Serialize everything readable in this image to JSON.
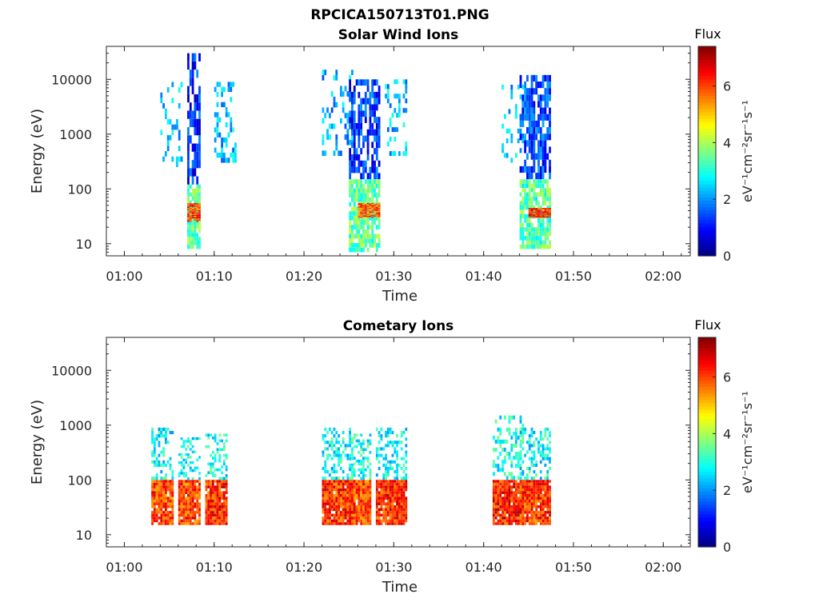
{
  "figure_title": "RPCICA150713T01.PNG",
  "chart_data": [
    {
      "type": "heatmap",
      "title": "Solar Wind Ions",
      "xlabel": "Time",
      "ylabel": "Energy (eV)",
      "y_scale": "log",
      "ylim": [
        6,
        40000
      ],
      "xlim": [
        "00:58",
        "02:03"
      ],
      "x_ticks": [
        "01:00",
        "01:10",
        "01:20",
        "01:30",
        "01:40",
        "01:50",
        "02:00"
      ],
      "y_ticks": [
        "10",
        "100",
        "1000",
        "10000"
      ],
      "colorbar": {
        "label": "Flux",
        "unit": "eV⁻¹cm⁻²sr⁻¹s⁻¹",
        "range": [
          0,
          7.4
        ],
        "ticks": [
          "0",
          "2",
          "4",
          "6"
        ],
        "colormap": "jet"
      },
      "clusters": [
        {
          "t": [
            "01:04",
            "01:06"
          ],
          "e_low": 250,
          "e_high": 9000,
          "f": 2.3,
          "density": 0.25
        },
        {
          "t": [
            "01:07",
            "01:08"
          ],
          "e_low": 120,
          "e_high": 30000,
          "f": 1.2,
          "density": 0.7
        },
        {
          "t": [
            "01:07",
            "01:08"
          ],
          "e_low": 8,
          "e_high": 120,
          "f": 3.5,
          "density": 0.85
        },
        {
          "t": [
            "01:07",
            "01:08"
          ],
          "e_low": 25,
          "e_high": 55,
          "f": 6.0,
          "density": 0.9
        },
        {
          "t": [
            "01:10",
            "01:12"
          ],
          "e_low": 300,
          "e_high": 9000,
          "f": 2.4,
          "density": 0.3
        },
        {
          "t": [
            "01:22",
            "01:25"
          ],
          "e_low": 400,
          "e_high": 15000,
          "f": 2.2,
          "density": 0.25
        },
        {
          "t": [
            "01:25",
            "01:28"
          ],
          "e_low": 150,
          "e_high": 10000,
          "f": 1.3,
          "density": 0.65
        },
        {
          "t": [
            "01:25",
            "01:28"
          ],
          "e_low": 7,
          "e_high": 150,
          "f": 3.5,
          "density": 0.85
        },
        {
          "t": [
            "01:26",
            "01:28"
          ],
          "e_low": 30,
          "e_high": 55,
          "f": 5.8,
          "density": 0.9
        },
        {
          "t": [
            "01:29",
            "01:31"
          ],
          "e_low": 400,
          "e_high": 10000,
          "f": 2.3,
          "density": 0.3
        },
        {
          "t": [
            "01:42",
            "01:44"
          ],
          "e_low": 300,
          "e_high": 8000,
          "f": 2.2,
          "density": 0.25
        },
        {
          "t": [
            "01:44",
            "01:47"
          ],
          "e_low": 150,
          "e_high": 12000,
          "f": 1.4,
          "density": 0.65
        },
        {
          "t": [
            "01:44",
            "01:47"
          ],
          "e_low": 8,
          "e_high": 150,
          "f": 3.4,
          "density": 0.85
        },
        {
          "t": [
            "01:45",
            "01:47"
          ],
          "e_low": 30,
          "e_high": 45,
          "f": 6.2,
          "density": 0.9
        }
      ]
    },
    {
      "type": "heatmap",
      "title": "Cometary Ions",
      "xlabel": "Time",
      "ylabel": "Energy (eV)",
      "y_scale": "log",
      "ylim": [
        6,
        40000
      ],
      "xlim": [
        "00:58",
        "02:03"
      ],
      "x_ticks": [
        "01:00",
        "01:10",
        "01:20",
        "01:30",
        "01:40",
        "01:50",
        "02:00"
      ],
      "y_ticks": [
        "10",
        "100",
        "1000",
        "10000"
      ],
      "colorbar": {
        "label": "Flux",
        "unit": "eV⁻¹cm⁻²sr⁻¹s⁻¹",
        "range": [
          0,
          7.4
        ],
        "ticks": [
          "0",
          "2",
          "4",
          "6"
        ],
        "colormap": "jet"
      },
      "clusters": [
        {
          "t": [
            "01:03",
            "01:05"
          ],
          "e_low": 100,
          "e_high": 900,
          "f": 2.8,
          "density": 0.4
        },
        {
          "t": [
            "01:03",
            "01:05"
          ],
          "e_low": 15,
          "e_high": 100,
          "f": 6.0,
          "density": 0.95
        },
        {
          "t": [
            "01:06",
            "01:08"
          ],
          "e_low": 100,
          "e_high": 600,
          "f": 2.8,
          "density": 0.35
        },
        {
          "t": [
            "01:06",
            "01:08"
          ],
          "e_low": 15,
          "e_high": 100,
          "f": 6.0,
          "density": 0.95
        },
        {
          "t": [
            "01:09",
            "01:11"
          ],
          "e_low": 100,
          "e_high": 700,
          "f": 2.9,
          "density": 0.4
        },
        {
          "t": [
            "01:09",
            "01:11"
          ],
          "e_low": 15,
          "e_high": 100,
          "f": 6.2,
          "density": 0.95
        },
        {
          "t": [
            "01:22",
            "01:25"
          ],
          "e_low": 100,
          "e_high": 900,
          "f": 2.8,
          "density": 0.4
        },
        {
          "t": [
            "01:22",
            "01:25"
          ],
          "e_low": 15,
          "e_high": 100,
          "f": 6.1,
          "density": 0.95
        },
        {
          "t": [
            "01:25",
            "01:27"
          ],
          "e_low": 100,
          "e_high": 700,
          "f": 2.9,
          "density": 0.4
        },
        {
          "t": [
            "01:25",
            "01:27"
          ],
          "e_low": 15,
          "e_high": 100,
          "f": 6.0,
          "density": 0.95
        },
        {
          "t": [
            "01:28",
            "01:31"
          ],
          "e_low": 100,
          "e_high": 900,
          "f": 2.8,
          "density": 0.4
        },
        {
          "t": [
            "01:28",
            "01:31"
          ],
          "e_low": 15,
          "e_high": 100,
          "f": 6.2,
          "density": 0.95
        },
        {
          "t": [
            "01:41",
            "01:44"
          ],
          "e_low": 100,
          "e_high": 1500,
          "f": 2.9,
          "density": 0.4
        },
        {
          "t": [
            "01:41",
            "01:44"
          ],
          "e_low": 15,
          "e_high": 100,
          "f": 6.3,
          "density": 0.95
        },
        {
          "t": [
            "01:44",
            "01:47"
          ],
          "e_low": 100,
          "e_high": 900,
          "f": 2.8,
          "density": 0.4
        },
        {
          "t": [
            "01:44",
            "01:47"
          ],
          "e_low": 15,
          "e_high": 100,
          "f": 6.1,
          "density": 0.95
        }
      ]
    }
  ]
}
